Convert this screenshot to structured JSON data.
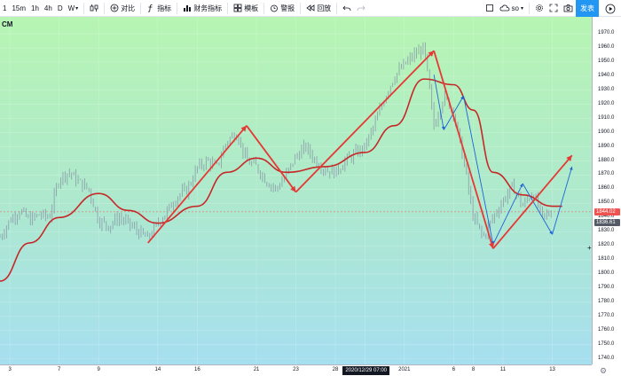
{
  "toolbar": {
    "intervals": [
      "1",
      "15m",
      "1h",
      "4h",
      "D",
      "W"
    ],
    "compare_label": "对比",
    "indicators_label": "指标",
    "financials_label": "财务指标",
    "templates_label": "模板",
    "alert_label": "警报",
    "replay_label": "回放",
    "layout_name": "so",
    "publish_label": "发表"
  },
  "symbol_legend": "CM",
  "colors": {
    "background_top": "#b7f5b3",
    "background_bottom": "#a6dff0",
    "candle": "#8a9aa8",
    "moving_average": "#c62828",
    "red_arrows": "#e53935",
    "blue_lines": "#1e63d6",
    "publish_button": "#2196f3",
    "price_label_red": "#ef5350",
    "price_label_dark": "#555b66"
  },
  "chart_data": {
    "type": "line",
    "y_ticks": [
      1970,
      1960,
      1950,
      1940,
      1930,
      1920,
      1910,
      1900,
      1890,
      1880,
      1870,
      1860,
      1850,
      1840,
      1830,
      1820,
      1810,
      1800,
      1790,
      1780,
      1770,
      1760,
      1750,
      1740
    ],
    "y_range": [
      1736,
      1982
    ],
    "x_ticks": [
      "3",
      "7",
      "9",
      "14",
      "16",
      "21",
      "23",
      "28",
      "2020/12/29 07:00",
      "2021",
      "6",
      "8",
      "11",
      "13"
    ],
    "current_price_label": "1844.02",
    "crosshair_price_label": "1836.61",
    "price_series": [
      {
        "x": 0,
        "y": 1826
      },
      {
        "x": 1,
        "y": 1838
      },
      {
        "x": 2,
        "y": 1845
      },
      {
        "x": 3,
        "y": 1838
      },
      {
        "x": 4,
        "y": 1842
      },
      {
        "x": 5,
        "y": 1840
      },
      {
        "x": 6,
        "y": 1868
      },
      {
        "x": 7,
        "y": 1872
      },
      {
        "x": 8,
        "y": 1865
      },
      {
        "x": 9,
        "y": 1860
      },
      {
        "x": 10,
        "y": 1838
      },
      {
        "x": 11,
        "y": 1834
      },
      {
        "x": 12,
        "y": 1840
      },
      {
        "x": 13,
        "y": 1836
      },
      {
        "x": 14,
        "y": 1830
      },
      {
        "x": 15,
        "y": 1825
      },
      {
        "x": 16,
        "y": 1836
      },
      {
        "x": 17,
        "y": 1845
      },
      {
        "x": 18,
        "y": 1855
      },
      {
        "x": 19,
        "y": 1860
      },
      {
        "x": 20,
        "y": 1875
      },
      {
        "x": 21,
        "y": 1880
      },
      {
        "x": 22,
        "y": 1876
      },
      {
        "x": 23,
        "y": 1894
      },
      {
        "x": 24,
        "y": 1900
      },
      {
        "x": 25,
        "y": 1880
      },
      {
        "x": 26,
        "y": 1876
      },
      {
        "x": 27,
        "y": 1866
      },
      {
        "x": 28,
        "y": 1860
      },
      {
        "x": 29,
        "y": 1870
      },
      {
        "x": 30,
        "y": 1883
      },
      {
        "x": 31,
        "y": 1890
      },
      {
        "x": 32,
        "y": 1880
      },
      {
        "x": 33,
        "y": 1874
      },
      {
        "x": 34,
        "y": 1872
      },
      {
        "x": 35,
        "y": 1880
      },
      {
        "x": 36,
        "y": 1885
      },
      {
        "x": 37,
        "y": 1890
      },
      {
        "x": 38,
        "y": 1906
      },
      {
        "x": 39,
        "y": 1925
      },
      {
        "x": 40,
        "y": 1940
      },
      {
        "x": 41,
        "y": 1948
      },
      {
        "x": 42,
        "y": 1955
      },
      {
        "x": 43,
        "y": 1960
      },
      {
        "x": 44,
        "y": 1905
      },
      {
        "x": 45,
        "y": 1926
      },
      {
        "x": 46,
        "y": 1915
      },
      {
        "x": 47,
        "y": 1880
      },
      {
        "x": 48,
        "y": 1840
      },
      {
        "x": 49,
        "y": 1826
      },
      {
        "x": 50,
        "y": 1840
      },
      {
        "x": 51,
        "y": 1852
      },
      {
        "x": 52,
        "y": 1862
      },
      {
        "x": 53,
        "y": 1848
      },
      {
        "x": 54,
        "y": 1858
      },
      {
        "x": 55,
        "y": 1840
      },
      {
        "x": 56,
        "y": 1844
      }
    ],
    "moving_average": [
      {
        "x": 0,
        "y": 1795
      },
      {
        "x": 3,
        "y": 1822
      },
      {
        "x": 6,
        "y": 1840
      },
      {
        "x": 10,
        "y": 1857
      },
      {
        "x": 13,
        "y": 1845
      },
      {
        "x": 16,
        "y": 1836
      },
      {
        "x": 20,
        "y": 1848
      },
      {
        "x": 23,
        "y": 1872
      },
      {
        "x": 26,
        "y": 1882
      },
      {
        "x": 29,
        "y": 1872
      },
      {
        "x": 33,
        "y": 1876
      },
      {
        "x": 37,
        "y": 1886
      },
      {
        "x": 40,
        "y": 1905
      },
      {
        "x": 43,
        "y": 1938
      },
      {
        "x": 46,
        "y": 1934
      },
      {
        "x": 48,
        "y": 1916
      },
      {
        "x": 50,
        "y": 1872
      },
      {
        "x": 53,
        "y": 1856
      },
      {
        "x": 56,
        "y": 1848
      },
      {
        "x": 57,
        "y": 1848
      }
    ],
    "red_arrows": [
      [
        {
          "x": 15,
          "y": 1822
        },
        {
          "x": 25,
          "y": 1905
        }
      ],
      [
        {
          "x": 25,
          "y": 1905
        },
        {
          "x": 30,
          "y": 1858
        }
      ],
      [
        {
          "x": 30,
          "y": 1858
        },
        {
          "x": 44,
          "y": 1958
        }
      ],
      [
        {
          "x": 44,
          "y": 1958
        },
        {
          "x": 50,
          "y": 1818
        }
      ],
      [
        {
          "x": 50,
          "y": 1818
        },
        {
          "x": 58,
          "y": 1884
        }
      ]
    ],
    "blue_lines": [
      [
        {
          "x": 44,
          "y": 1941
        },
        {
          "x": 45,
          "y": 1902
        }
      ],
      [
        {
          "x": 45,
          "y": 1902
        },
        {
          "x": 47,
          "y": 1926
        }
      ],
      [
        {
          "x": 47,
          "y": 1926
        },
        {
          "x": 50,
          "y": 1821
        }
      ],
      [
        {
          "x": 50,
          "y": 1821
        },
        {
          "x": 53,
          "y": 1864
        }
      ],
      [
        {
          "x": 53,
          "y": 1864
        },
        {
          "x": 56,
          "y": 1828
        }
      ],
      [
        {
          "x": 56,
          "y": 1828
        },
        {
          "x": 58,
          "y": 1876
        }
      ]
    ]
  }
}
